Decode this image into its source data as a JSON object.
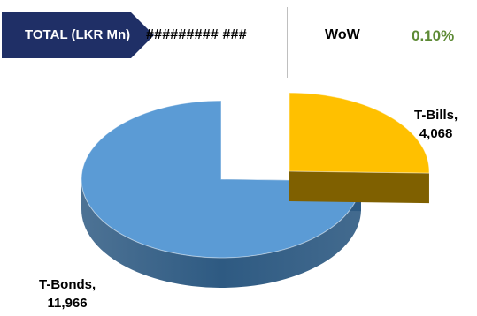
{
  "header": {
    "total_label": "TOTAL (LKR Mn)",
    "total_value": "######### ###",
    "wow_label": "WoW",
    "wow_value": "0.10%"
  },
  "colors": {
    "badge": "#1f2f66",
    "wow_value": "#5d8a35",
    "t_bills": "#ffc000",
    "t_bills_side": "#7f6000",
    "t_bonds": "#5b9bd5",
    "t_bonds_side": "#2e5a82"
  },
  "chart_data": {
    "type": "pie",
    "style": "3d-exploded",
    "categories": [
      "T-Bills",
      "T-Bonds"
    ],
    "values": [
      4068,
      11966
    ],
    "labels": [
      {
        "name": "T-Bills,",
        "value": "4,068"
      },
      {
        "name": "T-Bonds,",
        "value": "11,966"
      }
    ]
  }
}
